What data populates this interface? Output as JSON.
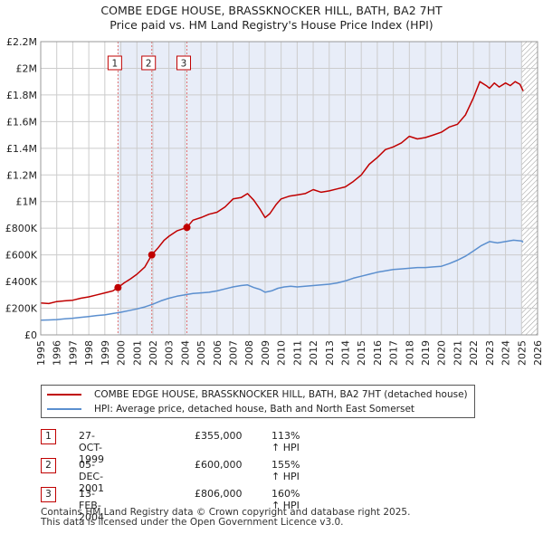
{
  "title_line1": "COMBE EDGE HOUSE, BRASSKNOCKER HILL, BATH, BA2 7HT",
  "title_line2": "Price paid vs. HM Land Registry's House Price Index (HPI)",
  "legend": {
    "property_label": "COMBE EDGE HOUSE, BRASSKNOCKER HILL, BATH, BA2 7HT (detached house)",
    "hpi_label": "HPI: Average price, detached house, Bath and North East Somerset"
  },
  "transactions": [
    {
      "num": "1",
      "date": "27-OCT-1999",
      "price": "£355,000",
      "hpi": "113% ↑ HPI"
    },
    {
      "num": "2",
      "date": "05-DEC-2001",
      "price": "£600,000",
      "hpi": "155% ↑ HPI"
    },
    {
      "num": "3",
      "date": "13-FEB-2004",
      "price": "£806,000",
      "hpi": "160% ↑ HPI"
    }
  ],
  "footer_line1": "Contains HM Land Registry data © Crown copyright and database right 2025.",
  "footer_line2": "This data is licensed under the Open Government Licence v3.0.",
  "colors": {
    "property": "#c00000",
    "hpi": "#5b8fcf",
    "shade": "#e8edf8",
    "grid": "#cccccc",
    "marker_line": "#e07070"
  },
  "chart_data": {
    "type": "line",
    "xlim": [
      1995,
      2026
    ],
    "ylim": [
      0,
      2200000
    ],
    "y_ticks": [
      0,
      200000,
      400000,
      600000,
      800000,
      1000000,
      1200000,
      1400000,
      1600000,
      1800000,
      2000000,
      2200000
    ],
    "y_tick_labels": [
      "£0",
      "£200K",
      "£400K",
      "£600K",
      "£800K",
      "£1M",
      "£1.2M",
      "£1.4M",
      "£1.6M",
      "£1.8M",
      "£2M",
      "£2.2M"
    ],
    "x_ticks": [
      1995,
      1996,
      1997,
      1998,
      1999,
      2000,
      2001,
      2002,
      2003,
      2004,
      2005,
      2006,
      2007,
      2008,
      2009,
      2010,
      2011,
      2012,
      2013,
      2014,
      2015,
      2016,
      2017,
      2018,
      2019,
      2020,
      2021,
      2022,
      2023,
      2024,
      2025,
      2026
    ],
    "x_tick_labels": [
      "1995",
      "1996",
      "1997",
      "1998",
      "1999",
      "2000",
      "2001",
      "2002",
      "2003",
      "2004",
      "2005",
      "2006",
      "2007",
      "2008",
      "2009",
      "2010",
      "2011",
      "2012",
      "2013",
      "2014",
      "2015",
      "2016",
      "2017",
      "2018",
      "2019",
      "2020",
      "2021",
      "2022",
      "2023",
      "2024",
      "2025",
      "2026"
    ],
    "shade_range": [
      1999.82,
      2025.0
    ],
    "hatch_from": 2025.0,
    "sale_markers": [
      {
        "label": "1",
        "x": 1999.82,
        "y": 355000
      },
      {
        "label": "2",
        "x": 2001.93,
        "y": 600000
      },
      {
        "label": "3",
        "x": 2004.12,
        "y": 806000
      }
    ],
    "series": [
      {
        "name": "COMBE EDGE HOUSE, BRASSKNOCKER HILL, BATH, BA2 7HT (detached house)",
        "x": [
          1995.0,
          1995.5,
          1996.0,
          1996.5,
          1997.0,
          1997.5,
          1998.0,
          1998.5,
          1999.0,
          1999.5,
          1999.82,
          2000.2,
          2000.6,
          2001.0,
          2001.5,
          2001.93,
          2002.3,
          2002.7,
          2003.0,
          2003.5,
          2004.12,
          2004.5,
          2005.0,
          2005.5,
          2006.0,
          2006.5,
          2007.0,
          2007.5,
          2007.9,
          2008.3,
          2008.7,
          2009.0,
          2009.3,
          2009.7,
          2010.0,
          2010.5,
          2011.0,
          2011.5,
          2012.0,
          2012.5,
          2013.0,
          2013.5,
          2014.0,
          2014.5,
          2015.0,
          2015.5,
          2016.0,
          2016.5,
          2017.0,
          2017.5,
          2018.0,
          2018.5,
          2019.0,
          2019.5,
          2020.0,
          2020.5,
          2021.0,
          2021.5,
          2022.0,
          2022.4,
          2022.8,
          2023.0,
          2023.3,
          2023.6,
          2024.0,
          2024.3,
          2024.6,
          2024.9,
          2025.1
        ],
        "y": [
          240000,
          235000,
          250000,
          255000,
          260000,
          275000,
          285000,
          300000,
          315000,
          330000,
          355000,
          390000,
          420000,
          455000,
          510000,
          600000,
          650000,
          710000,
          740000,
          780000,
          806000,
          860000,
          880000,
          905000,
          920000,
          960000,
          1020000,
          1030000,
          1060000,
          1010000,
          940000,
          880000,
          910000,
          980000,
          1020000,
          1040000,
          1050000,
          1060000,
          1090000,
          1070000,
          1080000,
          1095000,
          1110000,
          1150000,
          1200000,
          1280000,
          1330000,
          1390000,
          1410000,
          1440000,
          1490000,
          1470000,
          1480000,
          1500000,
          1520000,
          1560000,
          1580000,
          1650000,
          1780000,
          1900000,
          1870000,
          1850000,
          1890000,
          1860000,
          1890000,
          1870000,
          1900000,
          1880000,
          1830000
        ]
      },
      {
        "name": "HPI: Average price, detached house, Bath and North East Somerset",
        "x": [
          1995.0,
          1995.5,
          1996.0,
          1996.5,
          1997.0,
          1997.5,
          1998.0,
          1998.5,
          1999.0,
          1999.5,
          2000.0,
          2000.5,
          2001.0,
          2001.5,
          2002.0,
          2002.5,
          2003.0,
          2003.5,
          2004.0,
          2004.5,
          2005.0,
          2005.5,
          2006.0,
          2006.5,
          2007.0,
          2007.5,
          2007.9,
          2008.3,
          2008.7,
          2009.0,
          2009.4,
          2009.8,
          2010.2,
          2010.6,
          2011.0,
          2011.5,
          2012.0,
          2012.5,
          2013.0,
          2013.5,
          2014.0,
          2014.5,
          2015.0,
          2015.5,
          2016.0,
          2016.5,
          2017.0,
          2017.5,
          2018.0,
          2018.5,
          2019.0,
          2019.5,
          2020.0,
          2020.5,
          2021.0,
          2021.5,
          2022.0,
          2022.5,
          2023.0,
          2023.5,
          2024.0,
          2024.5,
          2025.0,
          2025.1
        ],
        "y": [
          110000,
          112000,
          115000,
          120000,
          125000,
          132000,
          138000,
          145000,
          150000,
          160000,
          170000,
          182000,
          195000,
          210000,
          230000,
          255000,
          275000,
          290000,
          300000,
          310000,
          315000,
          320000,
          330000,
          345000,
          360000,
          370000,
          375000,
          355000,
          340000,
          320000,
          330000,
          350000,
          360000,
          365000,
          360000,
          365000,
          370000,
          375000,
          380000,
          390000,
          405000,
          425000,
          440000,
          455000,
          470000,
          480000,
          490000,
          495000,
          500000,
          505000,
          505000,
          510000,
          515000,
          535000,
          560000,
          590000,
          630000,
          670000,
          700000,
          690000,
          700000,
          710000,
          705000,
          695000
        ]
      }
    ]
  }
}
